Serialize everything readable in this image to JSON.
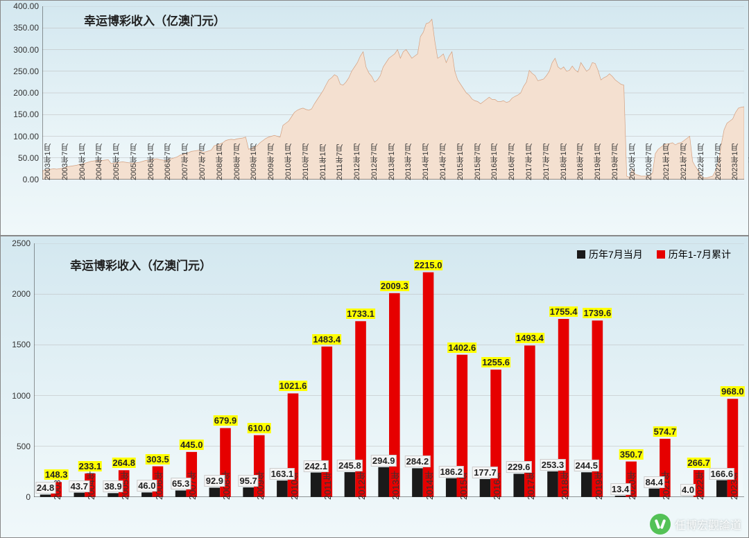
{
  "chart1": {
    "type": "area",
    "title": "幸运博彩收入（亿澳门元）",
    "title_fontsize": 17,
    "background_gradient": [
      "#d4e8f0",
      "#f0f8fa"
    ],
    "area_fill": "#f4e0d0",
    "area_stroke": "#d4a080",
    "ylim": [
      0,
      400
    ],
    "ytick_step": 50,
    "yticks": [
      "0.00",
      "50.00",
      "100.00",
      "150.00",
      "200.00",
      "250.00",
      "300.00",
      "350.00",
      "400.00"
    ],
    "x_start_year": 2003,
    "x_end_year": 2023,
    "x_month_labels": [
      "1月",
      "7月"
    ],
    "data": [
      20,
      22,
      23,
      24,
      25,
      24,
      25,
      26,
      28,
      30,
      31,
      32,
      33,
      35,
      36,
      38,
      40,
      42,
      43,
      44,
      44,
      44,
      45,
      46,
      37,
      38,
      39,
      40,
      41,
      40,
      39,
      38,
      38,
      39,
      40,
      42,
      44,
      45,
      46,
      47,
      48,
      46,
      45,
      44,
      46,
      48,
      50,
      52,
      56,
      58,
      60,
      62,
      65,
      66,
      67,
      68,
      63,
      64,
      66,
      68,
      78,
      80,
      82,
      85,
      90,
      92,
      93,
      92,
      94,
      95,
      96,
      98,
      70,
      72,
      75,
      78,
      85,
      90,
      95,
      98,
      100,
      102,
      100,
      98,
      125,
      130,
      135,
      145,
      155,
      160,
      163,
      165,
      162,
      160,
      163,
      175,
      185,
      195,
      205,
      218,
      230,
      235,
      242,
      238,
      220,
      218,
      225,
      235,
      250,
      260,
      270,
      285,
      295,
      260,
      246,
      238,
      225,
      230,
      240,
      260,
      270,
      280,
      285,
      290,
      300,
      280,
      295,
      300,
      290,
      280,
      285,
      290,
      330,
      340,
      360,
      362,
      370,
      320,
      280,
      284,
      290,
      270,
      285,
      295,
      250,
      230,
      220,
      210,
      200,
      195,
      186,
      182,
      180,
      175,
      180,
      185,
      190,
      185,
      185,
      180,
      180,
      182,
      178,
      180,
      188,
      192,
      195,
      200,
      215,
      225,
      252,
      245,
      240,
      228,
      230,
      232,
      240,
      250,
      270,
      280,
      260,
      255,
      260,
      250,
      252,
      262,
      253,
      248,
      270,
      260,
      250,
      255,
      270,
      268,
      252,
      230,
      235,
      238,
      244,
      238,
      230,
      225,
      220,
      218,
      8,
      5,
      25,
      12,
      10,
      8,
      8,
      8,
      10,
      15,
      60,
      70,
      75,
      80,
      82,
      83,
      85,
      80,
      84,
      85,
      90,
      95,
      100,
      42,
      30,
      20,
      8,
      4,
      4,
      6,
      8,
      20,
      40,
      80,
      115,
      130,
      135,
      140,
      155,
      165,
      167,
      168
    ]
  },
  "chart2": {
    "type": "bar",
    "title": "幸运博彩收入（亿澳门元）",
    "title_fontsize": 17,
    "background_gradient": [
      "#d4e8f0",
      "#f0f8fa"
    ],
    "ylim": [
      0,
      2500
    ],
    "ytick_step": 500,
    "yticks": [
      "0",
      "500",
      "1000",
      "1500",
      "2000",
      "2500"
    ],
    "categories": [
      "2003年",
      "2004年",
      "2005年",
      "2006年",
      "2007年",
      "2008年",
      "2009年",
      "2010年",
      "2011年",
      "2012年",
      "2013年",
      "2014年",
      "2015年",
      "2016年",
      "2017年",
      "2018年",
      "2019年",
      "2020年",
      "2021年",
      "2022年",
      "2023年"
    ],
    "series": [
      {
        "name": "历年7月当月",
        "color": "#1a1a1a",
        "values": [
          24.8,
          43.7,
          38.9,
          46.0,
          65.3,
          92.9,
          95.7,
          163.1,
          242.1,
          245.8,
          294.9,
          284.2,
          186.2,
          177.7,
          229.6,
          253.3,
          244.5,
          13.4,
          84.4,
          4.0,
          166.6
        ]
      },
      {
        "name": "历年1-7月累计",
        "color": "#e60000",
        "values": [
          148.3,
          233.1,
          264.8,
          303.5,
          445.0,
          679.9,
          610.0,
          1021.6,
          1483.4,
          1733.1,
          2009.3,
          2215.0,
          1402.6,
          1255.6,
          1493.4,
          1755.4,
          1739.6,
          350.7,
          574.7,
          266.7,
          968.0
        ]
      }
    ],
    "legend_position": "top-right",
    "data_label_red_bg": "#ffff00",
    "data_label_black_bg": "#f5f5f5",
    "bar_width": 0.32
  },
  "watermark": {
    "text": "任博宏觀論道",
    "icon": "wechat-icon",
    "icon_color": "#20b020"
  }
}
